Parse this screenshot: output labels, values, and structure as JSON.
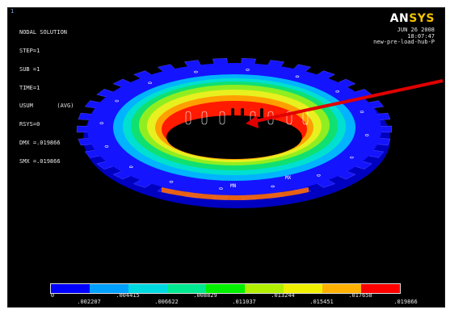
{
  "window_number": "1",
  "info": {
    "line1": "NODAL SOLUTION",
    "line2": "STEP=1",
    "line3": "SUB =1",
    "line4": "TIME=1",
    "line5": "USUM       (AVG)",
    "line6": "RSYS=0",
    "line7": "DMX =.019866",
    "line8": "SMX =.019866"
  },
  "logo": {
    "an": "AN",
    "sys": "SYS"
  },
  "meta": {
    "date": "JUN 26 2008",
    "time": "18:07:47",
    "jobname": "new-pre-load-hub-P"
  },
  "colors": {
    "background": "#000000",
    "arrow": "#e00000",
    "contour": [
      "#0000ff",
      "#00a0ff",
      "#00d8e0",
      "#00e890",
      "#00f000",
      "#b0f000",
      "#f0f000",
      "#ffb000",
      "#ff0000"
    ]
  },
  "node_labels": {
    "mn": "MN",
    "mx": "MX"
  },
  "legend": {
    "top_values": [
      "0",
      ".004415",
      ".008829",
      ".013244",
      ".017658"
    ],
    "bottom_values": [
      ".002207",
      ".006622",
      ".011037",
      ".015451",
      ".019866"
    ]
  }
}
